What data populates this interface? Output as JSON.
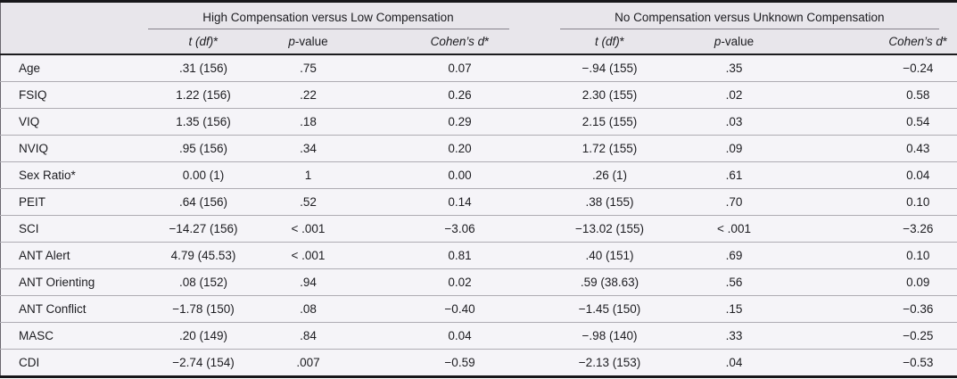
{
  "table": {
    "groups": [
      {
        "title": "High Compensation versus Low Compensation"
      },
      {
        "title": "No Compensation versus Unknown Compensation"
      }
    ],
    "sub_columns": [
      {
        "text": "t (df)*",
        "italic": "t (df)",
        "rest": "*"
      },
      {
        "text": "p-value",
        "italic": "p",
        "rest": "-value"
      },
      {
        "text": "Cohen’s d*",
        "italic": "Cohen’s d",
        "rest": "*"
      }
    ],
    "rows": [
      {
        "label": "Age",
        "cells": [
          ".31 (156)",
          ".75",
          "0.07",
          "−.94 (155)",
          ".35",
          "−0.24"
        ]
      },
      {
        "label": "FSIQ",
        "cells": [
          "1.22 (156)",
          ".22",
          "0.26",
          "2.30 (155)",
          ".02",
          "0.58"
        ]
      },
      {
        "label": "VIQ",
        "cells": [
          "1.35 (156)",
          ".18",
          "0.29",
          "2.15 (155)",
          ".03",
          "0.54"
        ]
      },
      {
        "label": "NVIQ",
        "cells": [
          ".95 (156)",
          ".34",
          "0.20",
          "1.72 (155)",
          ".09",
          "0.43"
        ]
      },
      {
        "label": "Sex Ratio*",
        "cells": [
          "0.00 (1)",
          "1",
          "0.00",
          ".26 (1)",
          ".61",
          "0.04"
        ]
      },
      {
        "label": "PEIT",
        "cells": [
          ".64 (156)",
          ".52",
          "0.14",
          ".38 (155)",
          ".70",
          "0.10"
        ]
      },
      {
        "label": "SCI",
        "cells": [
          "−14.27 (156)",
          "< .001",
          "−3.06",
          "−13.02 (155)",
          "< .001",
          "−3.26"
        ]
      },
      {
        "label": "ANT Alert",
        "cells": [
          "4.79 (45.53)",
          "< .001",
          "0.81",
          ".40 (151)",
          ".69",
          "0.10"
        ]
      },
      {
        "label": "ANT Orienting",
        "cells": [
          ".08 (152)",
          ".94",
          "0.02",
          ".59 (38.63)",
          ".56",
          "0.09"
        ]
      },
      {
        "label": "ANT Conflict",
        "cells": [
          "−1.78 (150)",
          ".08",
          "−0.40",
          "−1.45 (150)",
          ".15",
          "−0.36"
        ]
      },
      {
        "label": "MASC",
        "cells": [
          ".20 (149)",
          ".84",
          "0.04",
          "−.98 (140)",
          ".33",
          "−0.25"
        ]
      },
      {
        "label": "CDI",
        "cells": [
          "−2.74 (154)",
          ".007",
          "−0.59",
          "−2.13 (153)",
          ".04",
          "−0.53"
        ]
      }
    ]
  },
  "colors": {
    "header_bg": "#e8e6eb",
    "body_bg": "#f5f4f8",
    "frame_border": "#17171a",
    "row_line": "#aeacb3",
    "text": "#1c1c20"
  }
}
